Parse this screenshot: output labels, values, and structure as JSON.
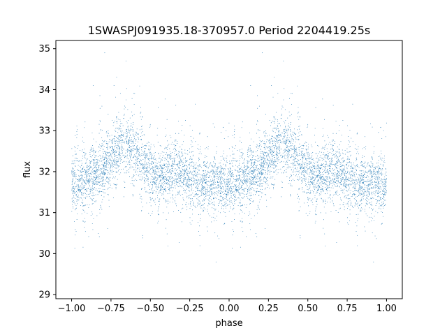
{
  "chart_data": {
    "type": "scatter",
    "title": "1SWASPJ091935.18-370957.0 Period 2204419.25s",
    "xlabel": "phase",
    "ylabel": "flux",
    "xlim": [
      -1.1,
      1.1
    ],
    "ylim": [
      28.9,
      35.2
    ],
    "xticks": [
      -1.0,
      -0.75,
      -0.5,
      -0.25,
      0.0,
      0.25,
      0.5,
      0.75,
      1.0
    ],
    "xtick_labels": [
      "−1.00",
      "−0.75",
      "−0.50",
      "−0.25",
      "0.00",
      "0.25",
      "0.50",
      "0.75",
      "1.00"
    ],
    "yticks": [
      29,
      30,
      31,
      32,
      33,
      34,
      35
    ],
    "ytick_labels": [
      "29",
      "30",
      "31",
      "32",
      "33",
      "34",
      "35"
    ],
    "grid": false,
    "marker_color": "#1f77b4",
    "series": [
      {
        "profile_phase": [
          0.0,
          0.05,
          0.1,
          0.15,
          0.2,
          0.25,
          0.3,
          0.35,
          0.4,
          0.45,
          0.5,
          0.55,
          0.6,
          0.65,
          0.7,
          0.75,
          0.8,
          0.85,
          0.9,
          0.95,
          1.0
        ],
        "profile_flux": [
          31.7,
          31.75,
          31.85,
          31.95,
          32.1,
          32.3,
          32.6,
          32.7,
          32.5,
          32.2,
          32.0,
          31.9,
          31.95,
          32.0,
          31.9,
          31.85,
          31.8,
          31.7,
          31.7,
          31.75,
          31.7
        ],
        "approx_point_count": 7000
      }
    ]
  }
}
